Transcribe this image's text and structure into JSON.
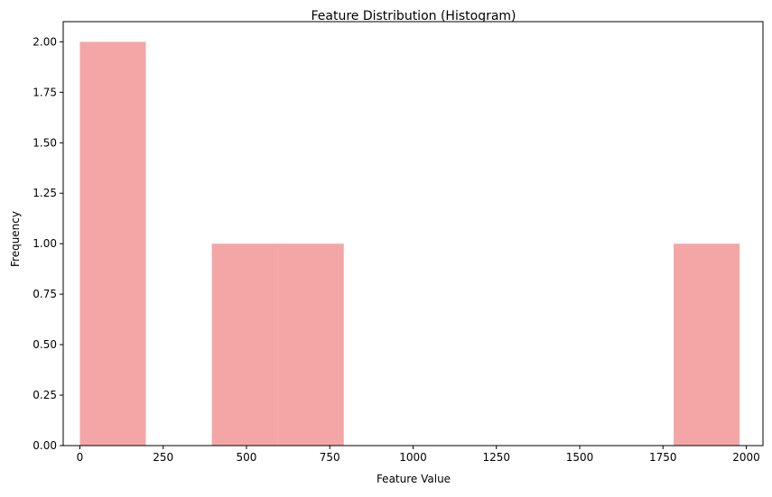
{
  "chart_data": {
    "type": "bar",
    "title": "Feature Distribution (Histogram)",
    "xlabel": "Feature Value",
    "ylabel": "Frequency",
    "xlim": [
      -50,
      2050
    ],
    "ylim": [
      0,
      2.1
    ],
    "x_ticks": [
      0,
      250,
      500,
      750,
      1000,
      1250,
      1500,
      1750,
      2000
    ],
    "y_ticks": [
      0,
      0.25,
      0.5,
      0.75,
      1.0,
      1.25,
      1.5,
      1.75,
      2.0
    ],
    "x_tick_labels": [
      "0",
      "250",
      "500",
      "750",
      "1000",
      "1250",
      "1500",
      "1750",
      "2000"
    ],
    "y_tick_labels": [
      "0.00",
      "0.25",
      "0.50",
      "0.75",
      "1.00",
      "1.25",
      "1.50",
      "1.75",
      "2.00"
    ],
    "grid": false,
    "bar_color": "#f08080",
    "bar_opacity": 0.7,
    "bins": [
      {
        "x_start": 0,
        "x_end": 198,
        "count": 2
      },
      {
        "x_start": 198,
        "x_end": 396,
        "count": 0
      },
      {
        "x_start": 396,
        "x_end": 594,
        "count": 1
      },
      {
        "x_start": 594,
        "x_end": 792,
        "count": 1
      },
      {
        "x_start": 792,
        "x_end": 990,
        "count": 0
      },
      {
        "x_start": 990,
        "x_end": 1188,
        "count": 0
      },
      {
        "x_start": 1188,
        "x_end": 1386,
        "count": 0
      },
      {
        "x_start": 1386,
        "x_end": 1584,
        "count": 0
      },
      {
        "x_start": 1584,
        "x_end": 1782,
        "count": 0
      },
      {
        "x_start": 1782,
        "x_end": 1980,
        "count": 1
      }
    ]
  }
}
